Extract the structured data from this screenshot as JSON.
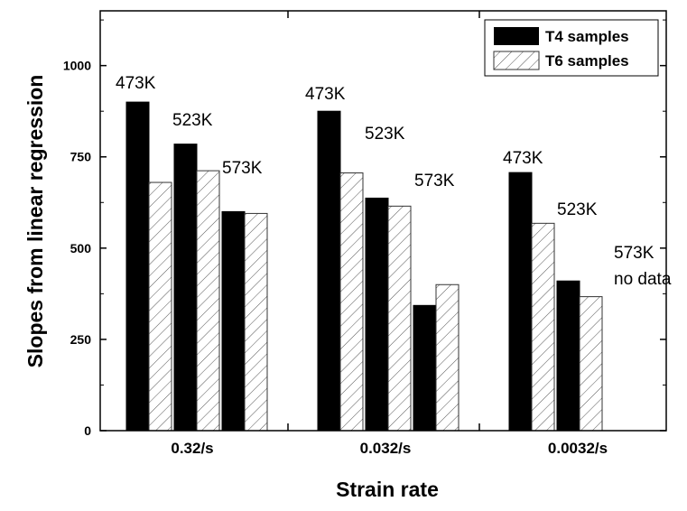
{
  "chart_data": {
    "type": "bar",
    "xlabel": "Strain rate",
    "ylabel": "Slopes from linear regression",
    "ylim": [
      0,
      1150
    ],
    "yticks": [
      0,
      250,
      500,
      750,
      1000
    ],
    "grid": false,
    "legend_position": "top-right",
    "categories": [
      "0.32/s",
      "0.032/s",
      "0.0032/s"
    ],
    "temperatures": [
      "473K",
      "523K",
      "573K"
    ],
    "series": [
      {
        "name": "T4 samples",
        "fill": "#000000",
        "pattern": "solid",
        "values": [
          [
            900,
            785,
            600
          ],
          [
            875,
            637,
            343
          ],
          [
            707,
            410,
            null
          ]
        ]
      },
      {
        "name": "T6 samples",
        "fill": "#ffffff",
        "pattern": "hatched",
        "values": [
          [
            680,
            712,
            595
          ],
          [
            706,
            615,
            400
          ],
          [
            568,
            367,
            null
          ]
        ]
      }
    ],
    "annotations": [
      {
        "group": 0,
        "temp": 0,
        "text": "473K"
      },
      {
        "group": 0,
        "temp": 1,
        "text": "523K"
      },
      {
        "group": 0,
        "temp": 2,
        "text": "573K"
      },
      {
        "group": 1,
        "temp": 0,
        "text": "473K"
      },
      {
        "group": 1,
        "temp": 1,
        "text": "523K"
      },
      {
        "group": 1,
        "temp": 2,
        "text": "573K"
      },
      {
        "group": 2,
        "temp": 0,
        "text": "473K"
      },
      {
        "group": 2,
        "temp": 1,
        "text": "523K"
      },
      {
        "group": 2,
        "temp": 2,
        "text": "573K",
        "line2": "no data"
      }
    ]
  }
}
